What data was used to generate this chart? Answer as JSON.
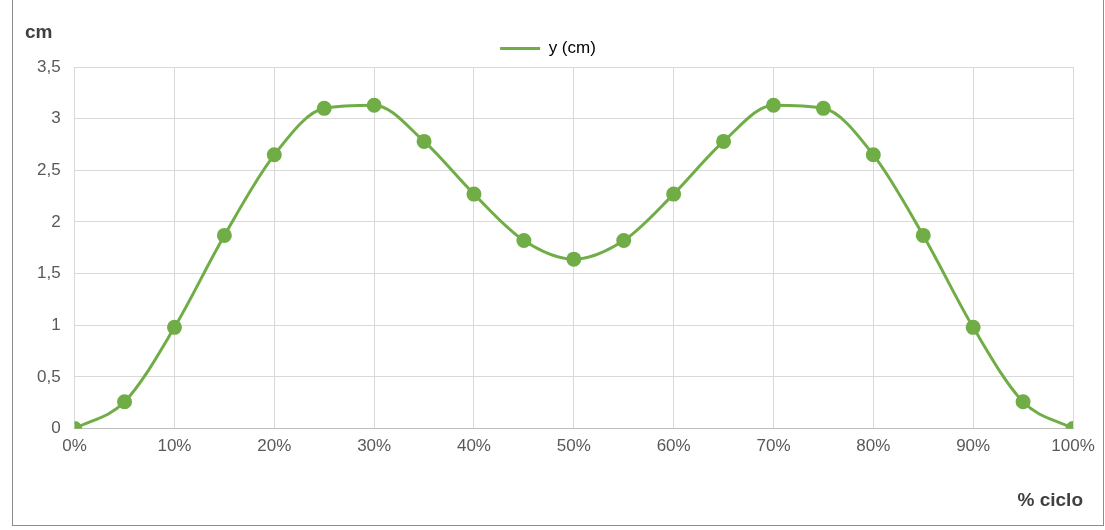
{
  "chart_data": {
    "type": "line",
    "xlabel": "% ciclo",
    "ylabel": "cm",
    "x": [
      0,
      5,
      10,
      15,
      20,
      25,
      30,
      35,
      40,
      45,
      50,
      55,
      60,
      65,
      70,
      75,
      80,
      85,
      90,
      95,
      100
    ],
    "series": [
      {
        "name": "y (cm)",
        "color": "#70ad47",
        "values": [
          0,
          0.26,
          0.98,
          1.87,
          2.65,
          3.1,
          3.13,
          2.78,
          2.27,
          1.82,
          1.64,
          1.82,
          2.27,
          2.78,
          3.13,
          3.1,
          2.65,
          1.87,
          0.98,
          0.26,
          0
        ]
      }
    ],
    "xlim": [
      0,
      100
    ],
    "xticks": [
      {
        "value": 0,
        "label": "0%"
      },
      {
        "value": 10,
        "label": "10%"
      },
      {
        "value": 20,
        "label": "20%"
      },
      {
        "value": 30,
        "label": "30%"
      },
      {
        "value": 40,
        "label": "40%"
      },
      {
        "value": 50,
        "label": "50%"
      },
      {
        "value": 60,
        "label": "60%"
      },
      {
        "value": 70,
        "label": "70%"
      },
      {
        "value": 80,
        "label": "80%"
      },
      {
        "value": 90,
        "label": "90%"
      },
      {
        "value": 100,
        "label": "100%"
      }
    ],
    "ylim": [
      0,
      3.5
    ],
    "yticks": [
      0,
      {
        "value": 0.5,
        "label": "0,5"
      },
      1,
      {
        "value": 1.5,
        "label": "1,5"
      },
      2,
      {
        "value": 2.5,
        "label": "2,5"
      },
      3,
      {
        "value": 3.5,
        "label": "3,5"
      }
    ],
    "grid": true,
    "legend": "top",
    "marker": "circle",
    "line_style": "solid"
  }
}
